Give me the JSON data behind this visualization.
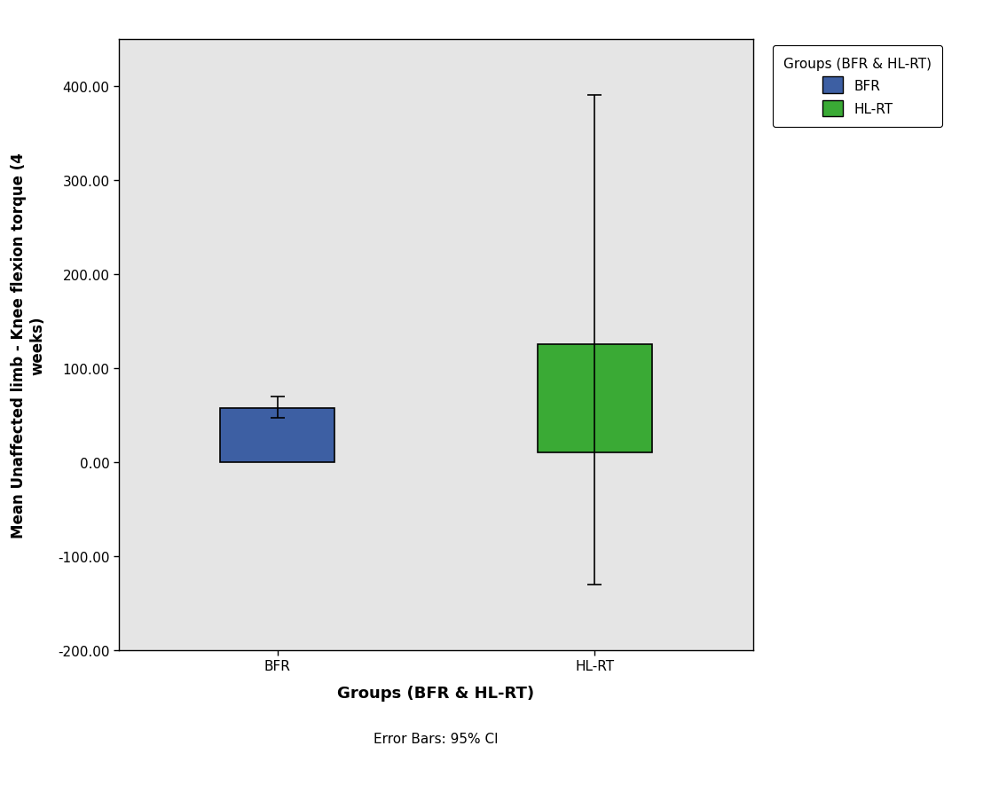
{
  "categories": [
    "BFR",
    "HL-RT"
  ],
  "bar_means": [
    57.0,
    65.0
  ],
  "bar_bottoms": [
    0.0,
    10.0
  ],
  "bar_tops": [
    57.0,
    125.0
  ],
  "ci_lower": [
    47.0,
    -130.0
  ],
  "ci_upper": [
    70.0,
    390.0
  ],
  "bar_colors": [
    "#3d5fa3",
    "#3aaa35"
  ],
  "bar_edge_color": "#000000",
  "ylim": [
    -200.0,
    450.0
  ],
  "yticks": [
    -200.0,
    -100.0,
    0.0,
    100.0,
    200.0,
    300.0,
    400.0
  ],
  "ytick_labels": [
    "-200.00",
    "-100.00",
    "0.00",
    "100.00",
    "200.00",
    "300.00",
    "400.00"
  ],
  "xlabel": "Groups (BFR & HL-RT)",
  "ylabel": "Mean Unaffected limb - Knee flexion torque (4\nweeks)",
  "legend_title": "Groups (BFR & HL-RT)",
  "legend_labels": [
    "BFR",
    "HL-RT"
  ],
  "legend_colors": [
    "#3d5fa3",
    "#3aaa35"
  ],
  "footnote": "Error Bars: 95% CI",
  "plot_bg_color": "#e5e5e5",
  "fig_bg_color": "#ffffff",
  "bar_width": 0.18,
  "x_positions": [
    0.25,
    0.75
  ],
  "xlim": [
    0.0,
    1.0
  ],
  "errorbar_capsize": 6,
  "errorbar_linewidth": 1.2,
  "bar_linewidth": 1.2,
  "tick_fontsize": 11,
  "label_fontsize": 13,
  "ylabel_fontsize": 12,
  "legend_fontsize": 11,
  "footnote_fontsize": 11
}
